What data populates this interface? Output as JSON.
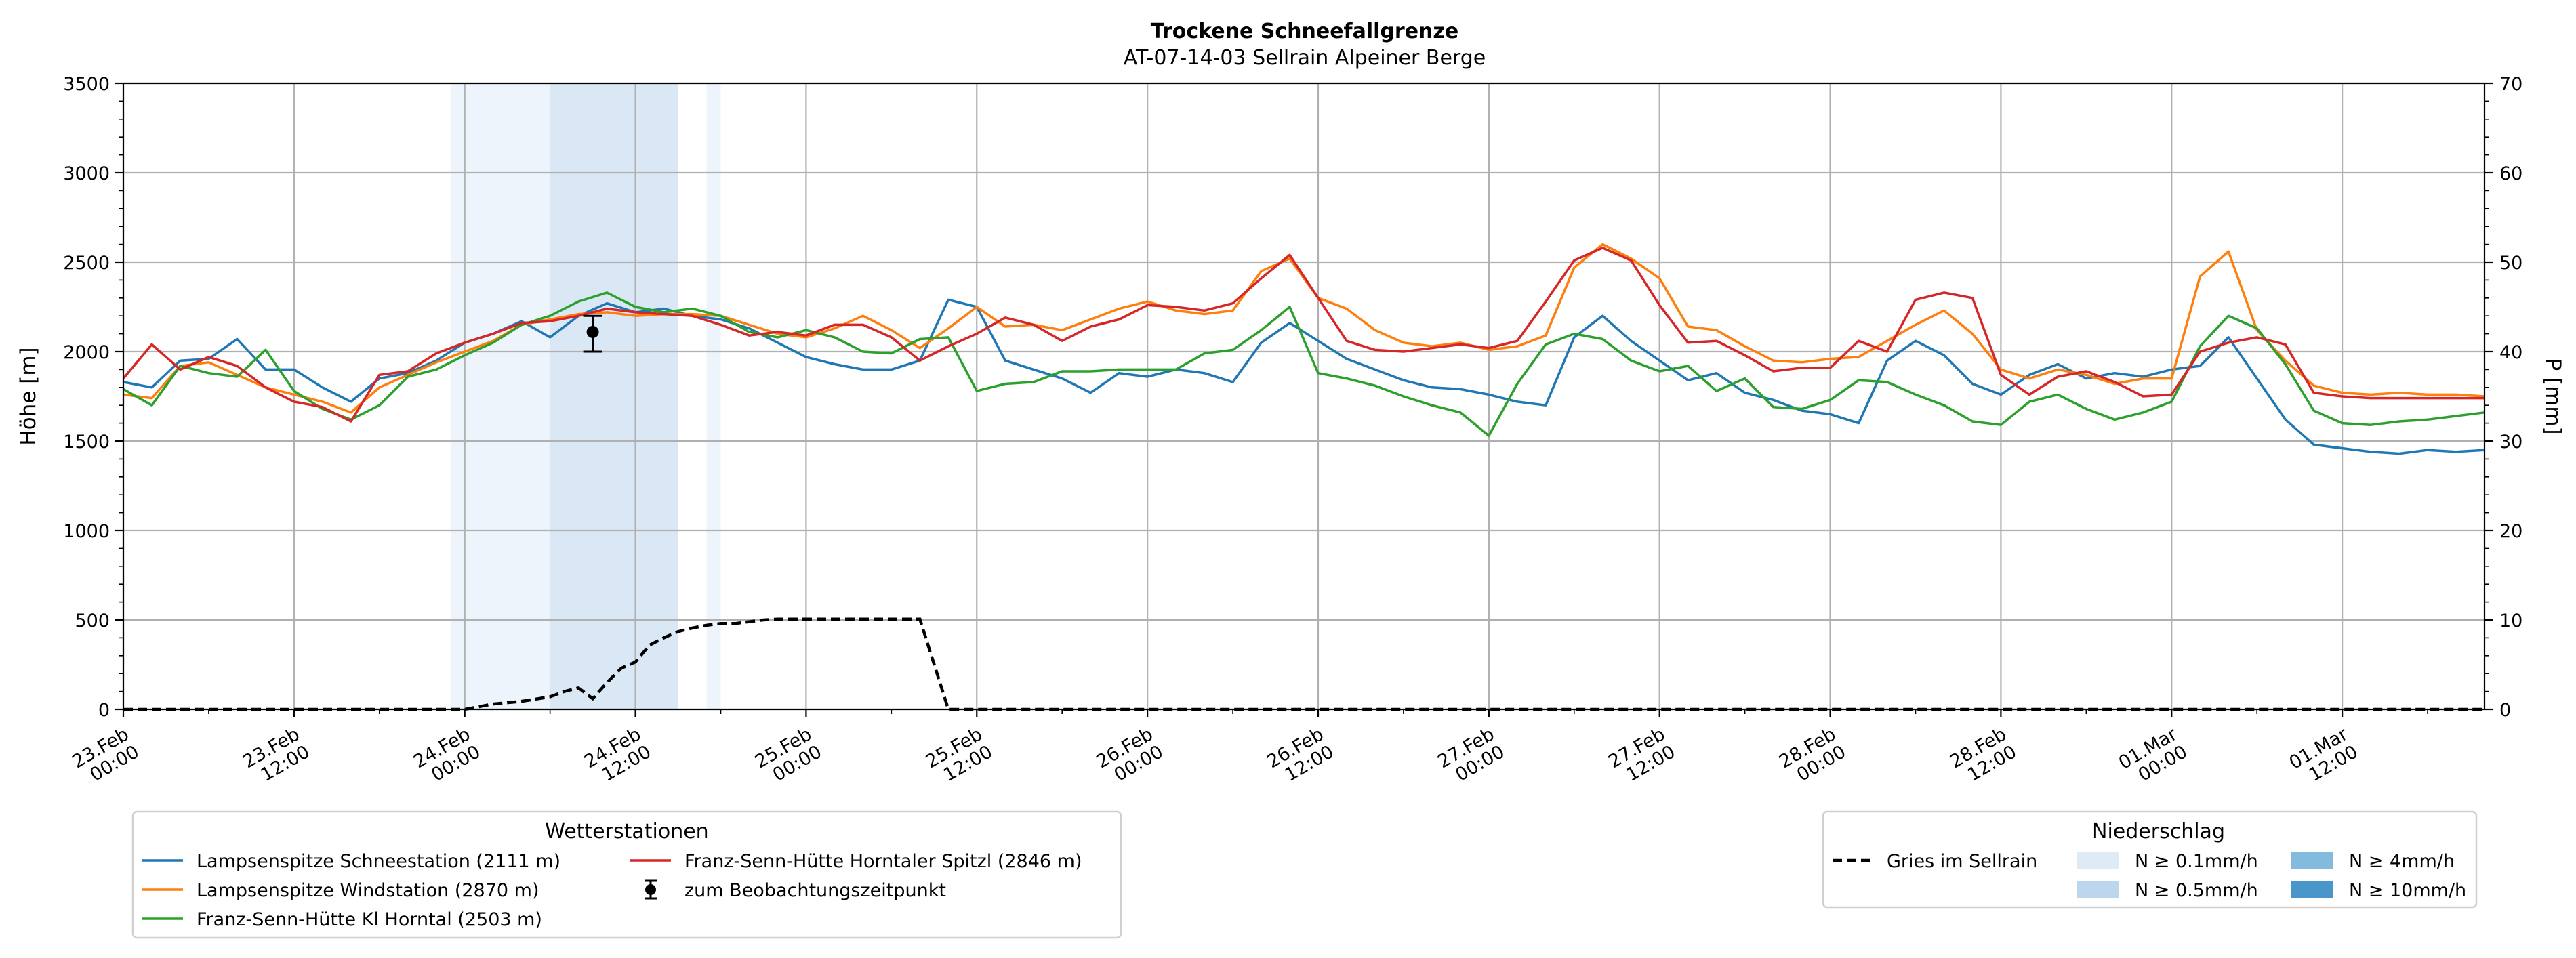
{
  "chart_data": {
    "type": "line",
    "title": "Trockene Schneefallgrenze",
    "subtitle": "AT-07-14-03 Sellrain Alpeiner Berge",
    "ylabel": "Höhe [m]",
    "y2label": "P [mm]",
    "ylim": [
      0,
      3500
    ],
    "y2lim": [
      0,
      70
    ],
    "yticks": [
      "0",
      "500",
      "1000",
      "1500",
      "2000",
      "2500",
      "3000",
      "3500"
    ],
    "y2ticks": [
      "0",
      "10",
      "20",
      "30",
      "40",
      "50",
      "60",
      "70"
    ],
    "xlim_hours": [
      0,
      166
    ],
    "xticks": [
      {
        "h": 0,
        "line1": "23.Feb",
        "line2": "00:00"
      },
      {
        "h": 12,
        "line1": "23.Feb",
        "line2": "12:00"
      },
      {
        "h": 24,
        "line1": "24.Feb",
        "line2": "00:00"
      },
      {
        "h": 36,
        "line1": "24.Feb",
        "line2": "12:00"
      },
      {
        "h": 48,
        "line1": "25.Feb",
        "line2": "00:00"
      },
      {
        "h": 60,
        "line1": "25.Feb",
        "line2": "12:00"
      },
      {
        "h": 72,
        "line1": "26.Feb",
        "line2": "00:00"
      },
      {
        "h": 84,
        "line1": "26.Feb",
        "line2": "12:00"
      },
      {
        "h": 96,
        "line1": "27.Feb",
        "line2": "00:00"
      },
      {
        "h": 108,
        "line1": "27.Feb",
        "line2": "12:00"
      },
      {
        "h": 120,
        "line1": "28.Feb",
        "line2": "00:00"
      },
      {
        "h": 132,
        "line1": "28.Feb",
        "line2": "12:00"
      },
      {
        "h": 144,
        "line1": "01.Mar",
        "line2": "00:00"
      },
      {
        "h": 156,
        "line1": "01.Mar",
        "line2": "12:00"
      }
    ],
    "shading": [
      {
        "start": 23,
        "end": 30,
        "level": "0.1"
      },
      {
        "start": 30,
        "end": 39,
        "level": "0.5"
      },
      {
        "start": 41,
        "end": 42,
        "level": "0.1"
      }
    ],
    "series": [
      {
        "name": "Lampsenspitze Schneestation (2111 m)",
        "color": "#1f77b4",
        "x": [
          0,
          2,
          4,
          6,
          8,
          10,
          12,
          14,
          16,
          18,
          20,
          22,
          24,
          26,
          28,
          30,
          32,
          34,
          36,
          38,
          40,
          42,
          44,
          46,
          48,
          50,
          52,
          54,
          56,
          58,
          60,
          62,
          64,
          66,
          68,
          70,
          72,
          74,
          76,
          78,
          80,
          82,
          84,
          86,
          88,
          90,
          92,
          94,
          96,
          98,
          100,
          102,
          104,
          106,
          108,
          110,
          112,
          114,
          116,
          118,
          120,
          122,
          124,
          126,
          128,
          130,
          132,
          134,
          136,
          138,
          140,
          142,
          144,
          146,
          148,
          150,
          152,
          154,
          156,
          158,
          160,
          162,
          164,
          166
        ],
        "values": [
          1830,
          1800,
          1950,
          1960,
          2070,
          1900,
          1900,
          1800,
          1720,
          1850,
          1880,
          1950,
          2050,
          2100,
          2170,
          2080,
          2200,
          2270,
          2220,
          2240,
          2200,
          2180,
          2130,
          2050,
          1970,
          1930,
          1900,
          1900,
          1950,
          2290,
          2250,
          1950,
          1900,
          1850,
          1770,
          1880,
          1860,
          1900,
          1880,
          1830,
          2050,
          2160,
          2060,
          1960,
          1900,
          1840,
          1800,
          1790,
          1760,
          1720,
          1700,
          2080,
          2200,
          2060,
          1950,
          1840,
          1880,
          1770,
          1730,
          1670,
          1650,
          1600,
          1950,
          2060,
          1980,
          1820,
          1760,
          1870,
          1930,
          1850,
          1880,
          1860,
          1900,
          1920,
          2080,
          1850,
          1620,
          1480,
          1460,
          1440,
          1430,
          1450,
          1440,
          1450
        ]
      },
      {
        "name": "Lampsenspitze Windstation (2870 m)",
        "color": "#ff7f0e",
        "x": [
          0,
          2,
          4,
          6,
          8,
          10,
          12,
          14,
          16,
          18,
          20,
          22,
          24,
          26,
          28,
          30,
          32,
          34,
          36,
          38,
          40,
          42,
          44,
          46,
          48,
          50,
          52,
          54,
          56,
          58,
          60,
          62,
          64,
          66,
          68,
          70,
          72,
          74,
          76,
          78,
          80,
          82,
          84,
          86,
          88,
          90,
          92,
          94,
          96,
          98,
          100,
          102,
          104,
          106,
          108,
          110,
          112,
          114,
          116,
          118,
          120,
          122,
          124,
          126,
          128,
          130,
          132,
          134,
          136,
          138,
          140,
          142,
          144,
          146,
          148,
          150,
          152,
          154,
          156,
          158,
          160,
          162,
          164,
          166
        ],
        "values": [
          1760,
          1740,
          1920,
          1940,
          1870,
          1800,
          1760,
          1720,
          1660,
          1800,
          1870,
          1940,
          2000,
          2060,
          2150,
          2180,
          2210,
          2220,
          2200,
          2210,
          2210,
          2200,
          2150,
          2100,
          2080,
          2130,
          2200,
          2120,
          2020,
          2130,
          2250,
          2140,
          2150,
          2120,
          2180,
          2240,
          2280,
          2230,
          2210,
          2230,
          2450,
          2520,
          2300,
          2240,
          2120,
          2050,
          2030,
          2050,
          2010,
          2030,
          2090,
          2470,
          2600,
          2520,
          2410,
          2140,
          2120,
          2030,
          1950,
          1940,
          1960,
          1970,
          2060,
          2150,
          2230,
          2100,
          1900,
          1850,
          1900,
          1870,
          1820,
          1850,
          1850,
          2420,
          2560,
          2120,
          1950,
          1810,
          1770,
          1760,
          1770,
          1760,
          1760,
          1750
        ]
      },
      {
        "name": "Franz-Senn-Hütte Kl Horntal (2503 m)",
        "color": "#2ca02c",
        "x": [
          0,
          2,
          4,
          6,
          8,
          10,
          12,
          14,
          16,
          18,
          20,
          22,
          24,
          26,
          28,
          30,
          32,
          34,
          36,
          38,
          40,
          42,
          44,
          46,
          48,
          50,
          52,
          54,
          56,
          58,
          60,
          62,
          64,
          66,
          68,
          70,
          72,
          74,
          76,
          78,
          80,
          82,
          84,
          86,
          88,
          90,
          92,
          94,
          96,
          98,
          100,
          102,
          104,
          106,
          108,
          110,
          112,
          114,
          116,
          118,
          120,
          122,
          124,
          126,
          128,
          130,
          132,
          134,
          136,
          138,
          140,
          142,
          144,
          146,
          148,
          150,
          152,
          154,
          156,
          158,
          160,
          162,
          164,
          166
        ],
        "values": [
          1790,
          1700,
          1920,
          1880,
          1860,
          2010,
          1780,
          1680,
          1620,
          1700,
          1860,
          1900,
          1980,
          2050,
          2150,
          2200,
          2280,
          2330,
          2250,
          2220,
          2240,
          2200,
          2110,
          2080,
          2120,
          2080,
          2000,
          1990,
          2070,
          2080,
          1780,
          1820,
          1830,
          1890,
          1890,
          1900,
          1900,
          1900,
          1990,
          2010,
          2120,
          2250,
          1880,
          1850,
          1810,
          1750,
          1700,
          1660,
          1530,
          1820,
          2040,
          2100,
          2070,
          1950,
          1890,
          1920,
          1780,
          1850,
          1690,
          1680,
          1730,
          1840,
          1830,
          1760,
          1700,
          1610,
          1590,
          1720,
          1760,
          1680,
          1620,
          1660,
          1720,
          2030,
          2200,
          2130,
          1930,
          1670,
          1600,
          1590,
          1610,
          1620,
          1640,
          1660
        ]
      },
      {
        "name": "Franz-Senn-Hütte Horntaler Spitzl (2846 m)",
        "color": "#d62728",
        "x": [
          0,
          2,
          4,
          6,
          8,
          10,
          12,
          14,
          16,
          18,
          20,
          22,
          24,
          26,
          28,
          30,
          32,
          34,
          36,
          38,
          40,
          42,
          44,
          46,
          48,
          50,
          52,
          54,
          56,
          58,
          60,
          62,
          64,
          66,
          68,
          70,
          72,
          74,
          76,
          78,
          80,
          82,
          84,
          86,
          88,
          90,
          92,
          94,
          96,
          98,
          100,
          102,
          104,
          106,
          108,
          110,
          112,
          114,
          116,
          118,
          120,
          122,
          124,
          126,
          128,
          130,
          132,
          134,
          136,
          138,
          140,
          142,
          144,
          146,
          148,
          150,
          152,
          154,
          156,
          158,
          160,
          162,
          164,
          166
        ],
        "values": [
          1850,
          2040,
          1900,
          1970,
          1920,
          1800,
          1720,
          1690,
          1610,
          1870,
          1890,
          1990,
          2050,
          2100,
          2160,
          2170,
          2200,
          2240,
          2220,
          2210,
          2200,
          2150,
          2090,
          2110,
          2090,
          2150,
          2150,
          2080,
          1950,
          2030,
          2100,
          2190,
          2150,
          2060,
          2140,
          2180,
          2260,
          2250,
          2230,
          2270,
          2410,
          2540,
          2300,
          2060,
          2010,
          2000,
          2020,
          2040,
          2020,
          2060,
          2280,
          2510,
          2580,
          2510,
          2260,
          2050,
          2060,
          1980,
          1890,
          1910,
          1910,
          2060,
          2000,
          2290,
          2330,
          2300,
          1870,
          1760,
          1860,
          1890,
          1830,
          1750,
          1760,
          2000,
          2050,
          2080,
          2040,
          1770,
          1750,
          1740,
          1740,
          1740,
          1740,
          1740
        ]
      }
    ],
    "gries_precip": {
      "name": "Gries im Sellrain",
      "x": [
        0,
        24,
        26,
        28,
        30,
        31,
        32,
        33,
        34,
        35,
        36,
        37,
        38,
        39,
        40,
        41,
        42,
        43,
        44,
        45,
        46,
        47,
        48,
        50,
        52,
        54,
        55,
        56,
        58,
        60,
        166
      ],
      "values_mm": [
        0,
        0,
        0.6,
        0.9,
        1.4,
        2.0,
        2.4,
        1.2,
        3.0,
        4.6,
        5.3,
        7.2,
        8.0,
        8.7,
        9.1,
        9.4,
        9.6,
        9.6,
        9.8,
        10.0,
        10.1,
        10.1,
        10.1,
        10.1,
        10.1,
        10.1,
        10.1,
        10.1,
        0,
        0,
        0
      ]
    },
    "observation": {
      "name": "zum Beobachtungszeitpunkt",
      "x": 33,
      "value": 2110,
      "low": 2000,
      "high": 2200
    },
    "legend_stations_title": "Wetterstationen",
    "legend_precip_title": "Niederschlag",
    "legend_precip_levels": [
      {
        "label": "N ≥ 0.1mm/h",
        "color": "#deebf7"
      },
      {
        "label": "N ≥ 0.5mm/h",
        "color": "#bcd6ee"
      },
      {
        "label": "N ≥ 4mm/h",
        "color": "#83bbdf"
      },
      {
        "label": "N ≥ 10mm/h",
        "color": "#4a96cb"
      }
    ]
  }
}
